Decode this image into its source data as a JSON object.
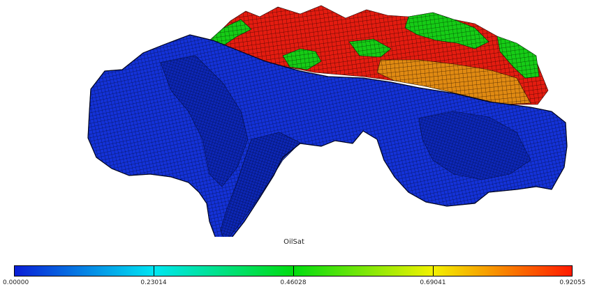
{
  "field": {
    "name": "OilSat"
  },
  "colorbar": {
    "min": "0.00000",
    "max": "0.92055",
    "labels": [
      "0.00000",
      "0.23014",
      "0.46028",
      "0.69041",
      "0.92055"
    ],
    "colors": [
      "#0a1ed6",
      "#00e6f2",
      "#00dc10",
      "#f2f200",
      "#ff1a00"
    ]
  },
  "legend_colors": {
    "low": "#1230d8",
    "mid_green": "#12cc12",
    "orange": "#e09010",
    "high_red": "#e41c10"
  }
}
